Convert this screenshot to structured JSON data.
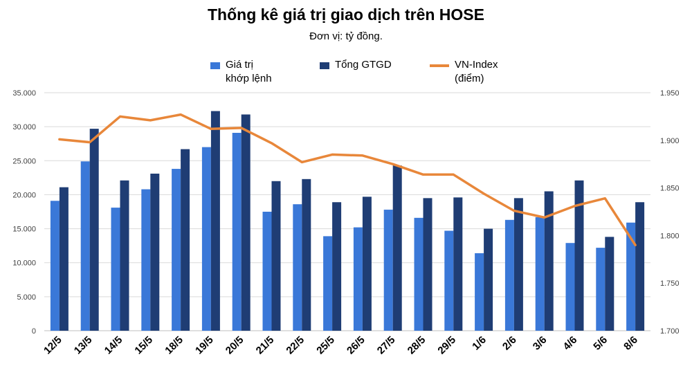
{
  "title": "Thống kê giá trị giao dịch trên HOSE",
  "subtitle": "Đơn vị: tỷ đồng.",
  "colors": {
    "match": "#3a78d8",
    "total": "#1f3d74",
    "index": "#e8873a",
    "grid": "#d9d9d9",
    "axis": "#bfbfbf"
  },
  "legend": [
    {
      "label_line1": "Giá trị",
      "label_line2": "khớp lệnh",
      "kind": "bar",
      "color": "#3a78d8"
    },
    {
      "label_line1": "Tổng GTGD",
      "label_line2": "",
      "kind": "bar",
      "color": "#1f3d74"
    },
    {
      "label_line1": "VN-Index",
      "label_line2": "(điểm)",
      "kind": "line",
      "color": "#e8873a"
    }
  ],
  "chart_data": {
    "type": "bar",
    "title": "Thống kê giá trị giao dịch trên HOSE",
    "subtitle": "Đơn vị: tỷ đồng.",
    "categories": [
      "12/5",
      "13/5",
      "14/5",
      "15/5",
      "18/5",
      "19/5",
      "20/5",
      "21/5",
      "22/5",
      "25/5",
      "26/5",
      "27/5",
      "28/5",
      "29/5",
      "1/6",
      "2/6",
      "3/6",
      "4/6",
      "5/6",
      "8/6"
    ],
    "series": [
      {
        "name": "Giá trị khớp lệnh",
        "type": "bar",
        "axis": "left",
        "values": [
          19100,
          24900,
          18100,
          20800,
          23800,
          27000,
          29100,
          17500,
          18600,
          13900,
          15200,
          17800,
          16600,
          14700,
          11400,
          16300,
          16700,
          12900,
          12200,
          15900
        ]
      },
      {
        "name": "Tổng GTGD",
        "type": "bar",
        "axis": "left",
        "values": [
          21100,
          29700,
          22100,
          23100,
          26700,
          32300,
          31800,
          22000,
          22300,
          18900,
          19700,
          24300,
          19500,
          19600,
          15000,
          19500,
          20500,
          22100,
          13800,
          18900
        ]
      },
      {
        "name": "VN-Index (điểm)",
        "type": "line",
        "axis": "right",
        "values": [
          1901,
          1898,
          1925,
          1921,
          1927,
          1912,
          1913,
          1897,
          1877,
          1885,
          1884,
          1875,
          1864,
          1864,
          1844,
          1826,
          1819,
          1831,
          1839,
          1790
        ]
      }
    ],
    "y_left": {
      "min": 0,
      "max": 35000,
      "step": 5000,
      "ticks": [
        "0",
        "5.000",
        "10.000",
        "15.000",
        "20.000",
        "25.000",
        "30.000",
        "35.000"
      ]
    },
    "y_right": {
      "min": 1700,
      "max": 1950,
      "step": 50,
      "ticks": [
        "1.700",
        "1.750",
        "1.800",
        "1.850",
        "1.900",
        "1.950"
      ]
    },
    "grid": true,
    "legend_position": "top"
  }
}
